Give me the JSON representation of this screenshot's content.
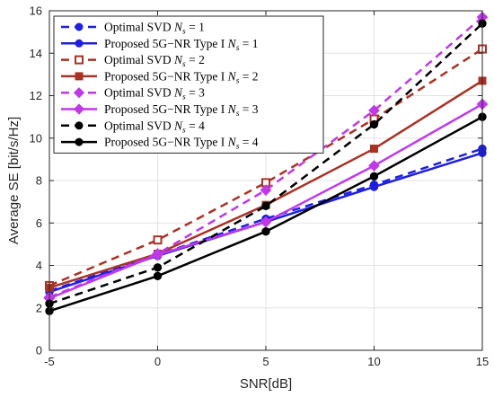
{
  "chart_data": {
    "type": "line",
    "xlabel": "SNR[dB]",
    "ylabel": "Average SE [bit/s/Hz]",
    "x": [
      -5,
      0,
      5,
      10,
      15
    ],
    "xticks": [
      "-5",
      "0",
      "5",
      "10",
      "15"
    ],
    "yticks": [
      "0",
      "2",
      "4",
      "6",
      "8",
      "10",
      "12",
      "14",
      "16"
    ],
    "xlim": [
      -5,
      15
    ],
    "ylim": [
      0,
      16
    ],
    "grid": true,
    "legend_position": "top-left",
    "series": [
      {
        "name": "Optimal SVD",
        "ns": "1",
        "values": [
          2.8,
          4.5,
          6.2,
          7.8,
          9.5
        ],
        "color": "#1f1fdd",
        "dash": "dashed",
        "marker": "circle"
      },
      {
        "name": "Proposed 5G−NR Type I",
        "ns": "1",
        "values": [
          2.75,
          4.45,
          6.05,
          7.7,
          9.3
        ],
        "color": "#1f1fdd",
        "dash": "solid",
        "marker": "circle"
      },
      {
        "name": "Optimal SVD",
        "ns": "2",
        "values": [
          3.05,
          5.2,
          7.9,
          10.9,
          14.2
        ],
        "color": "#a93226",
        "dash": "dashed",
        "marker": "square"
      },
      {
        "name": "Proposed 5G−NR Type I",
        "ns": "2",
        "values": [
          2.95,
          4.55,
          6.85,
          9.5,
          12.7
        ],
        "color": "#a93226",
        "dash": "solid",
        "marker": "square"
      },
      {
        "name": "Optimal SVD",
        "ns": "3",
        "values": [
          2.5,
          4.55,
          7.55,
          11.3,
          15.7
        ],
        "color": "#c039e6",
        "dash": "dashed",
        "marker": "diamond"
      },
      {
        "name": "Proposed 5G−NR Type I",
        "ns": "3",
        "values": [
          2.45,
          4.5,
          6.05,
          8.7,
          11.6
        ],
        "color": "#c039e6",
        "dash": "solid",
        "marker": "diamond"
      },
      {
        "name": "Optimal SVD",
        "ns": "4",
        "values": [
          2.2,
          3.9,
          6.8,
          10.65,
          15.4
        ],
        "color": "#000000",
        "dash": "dashed",
        "marker": "circle"
      },
      {
        "name": "Proposed 5G−NR Type I",
        "ns": "4",
        "values": [
          1.85,
          3.5,
          5.6,
          8.2,
          11.0
        ],
        "color": "#000000",
        "dash": "solid",
        "marker": "circle"
      }
    ]
  }
}
